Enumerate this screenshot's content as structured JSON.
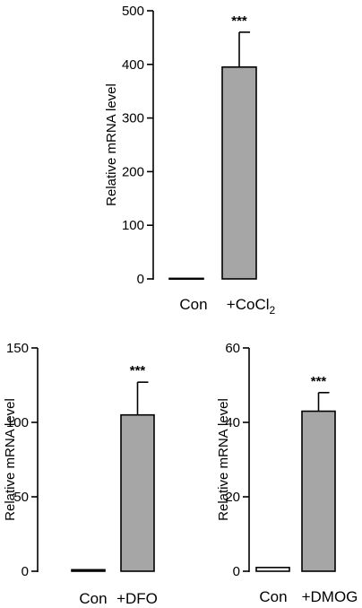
{
  "chart_data": [
    {
      "id": "cocl2",
      "type": "bar",
      "categories": [
        "Con",
        "+CoCl2"
      ],
      "category_labels": [
        {
          "text": "Con",
          "sub": ""
        },
        {
          "text": "+CoCl",
          "sub": "2"
        }
      ],
      "values": [
        1,
        395
      ],
      "error": [
        0,
        65
      ],
      "significance": [
        "",
        "***"
      ],
      "ylabel": "Relative mRNA level",
      "ylim": [
        0,
        500
      ],
      "yticks": [
        0,
        100,
        200,
        300,
        400,
        500
      ],
      "bar_colors": [
        "#ffffff",
        "#a6a6a6"
      ]
    },
    {
      "id": "dfo",
      "type": "bar",
      "categories": [
        "Con",
        "+DFO"
      ],
      "category_labels": [
        {
          "text": "Con",
          "sub": ""
        },
        {
          "text": "+DFO",
          "sub": ""
        }
      ],
      "values": [
        1,
        105
      ],
      "error": [
        0,
        22
      ],
      "significance": [
        "",
        "***"
      ],
      "ylabel": "Relative mRNA level",
      "ylim": [
        0,
        150
      ],
      "yticks": [
        0,
        50,
        100,
        150
      ],
      "bar_colors": [
        "#ffffff",
        "#a6a6a6"
      ]
    },
    {
      "id": "dmog",
      "type": "bar",
      "categories": [
        "Con",
        "+DMOG"
      ],
      "category_labels": [
        {
          "text": "Con",
          "sub": ""
        },
        {
          "text": "+DMOG",
          "sub": ""
        }
      ],
      "values": [
        1,
        43
      ],
      "error": [
        0,
        5
      ],
      "significance": [
        "",
        "***"
      ],
      "ylabel": "Relative mRNA level",
      "ylim": [
        0,
        60
      ],
      "yticks": [
        0,
        20,
        40,
        60
      ],
      "bar_colors": [
        "#ffffff",
        "#a6a6a6"
      ]
    }
  ]
}
